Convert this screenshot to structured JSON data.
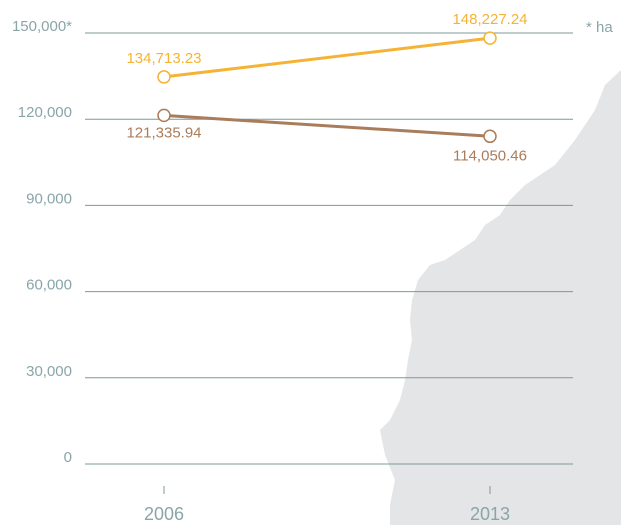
{
  "chart_data": {
    "type": "line",
    "annotations": [
      "* ha"
    ],
    "categories": [
      "2006",
      "2013"
    ],
    "series": [
      {
        "color": "#f5b335",
        "values": [
          134713.23,
          148227.24
        ],
        "value_labels": [
          "134,713.23",
          "148,227.24"
        ]
      },
      {
        "color": "#a97c5b",
        "values": [
          121335.94,
          114050.46
        ],
        "value_labels": [
          "121,335.94",
          "114,050.46"
        ]
      }
    ],
    "ylim": [
      0,
      150000
    ],
    "yticks": [
      0,
      {
        "value": 30000,
        "label": "30,000"
      },
      {
        "value": 60000,
        "label": "60,000"
      },
      {
        "value": 90000,
        "label": "90,000"
      },
      {
        "value": 120000,
        "label": "120,000"
      },
      {
        "value": 150000,
        "label": "150,000*"
      }
    ],
    "grid": true
  }
}
